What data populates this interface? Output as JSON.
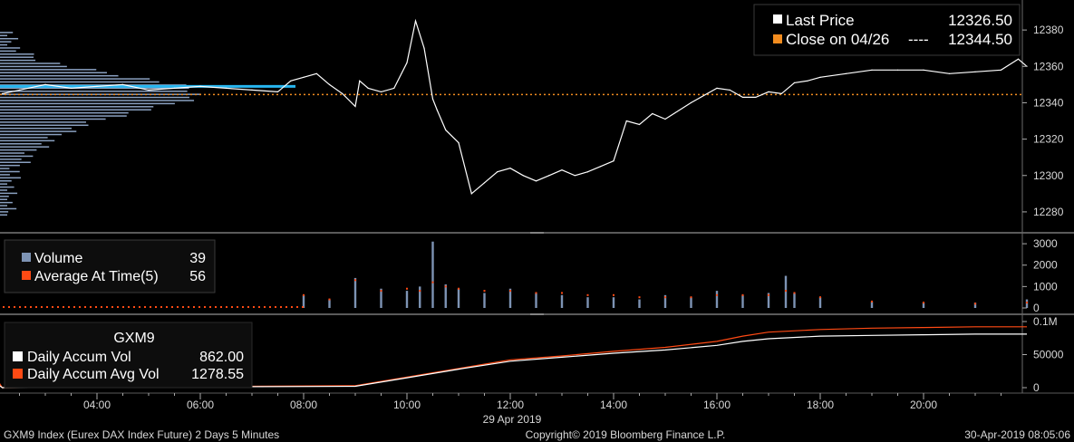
{
  "price_panel": {
    "legend": [
      {
        "label": "Last Price",
        "value": "12326.50",
        "dashes": "",
        "color": "#ffffff"
      },
      {
        "label": "Close on 04/26",
        "value": "12344.50",
        "dashes": "----",
        "color": "#f28c1f"
      }
    ]
  },
  "volume_panel": {
    "legend": [
      {
        "label": "Volume",
        "value": "39",
        "color": "#7d93b4"
      },
      {
        "label": "Average At Time(5)",
        "value": "56",
        "color": "#ff4a14"
      }
    ]
  },
  "accum_panel": {
    "ticker": "GXM9",
    "legend": [
      {
        "label": "Daily Accum Vol",
        "value": "862.00",
        "color": "#ffffff"
      },
      {
        "label": "Daily Accum Avg Vol",
        "value": "1278.55",
        "color": "#ff4a14"
      }
    ]
  },
  "x_axis": {
    "ticks": [
      "04:00",
      "06:00",
      "08:00",
      "10:00",
      "12:00",
      "14:00",
      "16:00",
      "18:00",
      "20:00"
    ],
    "date_label": "29 Apr 2019"
  },
  "footer": {
    "left": "GXM9 Index (Eurex DAX Index Future) 2 Days 5 Minutes",
    "center": "Copyright© 2019 Bloomberg Finance L.P.",
    "right": "30-Apr-2019 08:05:06"
  },
  "colors": {
    "price": "#ffffff",
    "prev_close": "#f28c1f",
    "volume_bar": "#7d93b4",
    "avg_dots": "#ff4a14",
    "profile": "#8aa0c0",
    "profile_marker": "#27b6f0"
  },
  "chart_data": [
    {
      "type": "line",
      "name": "Price",
      "series": [
        {
          "name": "Last Price",
          "x": [
            "02:10",
            "02:30",
            "03:00",
            "03:30",
            "04:00",
            "04:30",
            "05:00",
            "05:30",
            "06:00",
            "06:30",
            "07:00",
            "07:30",
            "07:45",
            "08:00",
            "08:15",
            "08:30",
            "08:45",
            "09:00",
            "09:05",
            "09:15",
            "09:30",
            "09:45",
            "10:00",
            "10:10",
            "10:20",
            "10:30",
            "10:35",
            "10:45",
            "11:00",
            "11:15",
            "11:30",
            "11:45",
            "12:00",
            "12:15",
            "12:30",
            "12:45",
            "13:00",
            "13:15",
            "13:30",
            "13:45",
            "14:00",
            "14:15",
            "14:30",
            "14:45",
            "15:00",
            "15:30",
            "16:00",
            "16:15",
            "16:30",
            "16:45",
            "17:00",
            "17:15",
            "17:30",
            "17:45",
            "18:00",
            "18:30",
            "19:00",
            "19:30",
            "20:00",
            "20:30",
            "21:00",
            "21:30",
            "21:50",
            "22:00"
          ],
          "values": [
            12345,
            12347,
            12350,
            12348,
            12349,
            12350,
            12347,
            12348,
            12349,
            12348,
            12347,
            12346,
            12352,
            12354,
            12356,
            12350,
            12345,
            12338,
            12352,
            12348,
            12346,
            12348,
            12362,
            12385,
            12370,
            12342,
            12336,
            12325,
            12318,
            12290,
            12296,
            12302,
            12304,
            12300,
            12297,
            12300,
            12303,
            12300,
            12302,
            12305,
            12308,
            12330,
            12328,
            12334,
            12331,
            12340,
            12348,
            12347,
            12343,
            12343,
            12346,
            12345,
            12351,
            12352,
            12354,
            12356,
            12358,
            12358,
            12358,
            12356,
            12357,
            12358,
            12364,
            12360
          ]
        },
        {
          "name": "Close on 04/26",
          "values": [
            12344.5
          ]
        }
      ],
      "ylim": [
        12270,
        12395
      ],
      "yticks": [
        12280,
        12300,
        12320,
        12340,
        12360,
        12380
      ]
    },
    {
      "type": "bar",
      "name": "Volume",
      "series": [
        {
          "name": "Volume",
          "x": [
            "08:00",
            "08:30",
            "09:00",
            "09:30",
            "10:00",
            "10:15",
            "10:30",
            "10:45",
            "11:00",
            "11:30",
            "12:00",
            "12:30",
            "13:00",
            "13:30",
            "14:00",
            "14:30",
            "15:00",
            "15:30",
            "16:00",
            "16:30",
            "17:00",
            "17:20",
            "17:30",
            "18:00",
            "19:00",
            "20:00",
            "21:00",
            "22:00"
          ],
          "values": [
            600,
            400,
            1400,
            900,
            800,
            1000,
            3100,
            1100,
            900,
            700,
            900,
            700,
            600,
            500,
            500,
            400,
            600,
            500,
            800,
            600,
            700,
            1500,
            700,
            500,
            300,
            250,
            250,
            400
          ]
        },
        {
          "name": "Average At Time(5)",
          "values": [
            600,
            400,
            1300,
            800,
            900,
            800,
            1200,
            1000,
            900,
            800,
            800,
            700,
            700,
            600,
            600,
            500,
            500,
            500,
            600,
            600,
            600,
            800,
            700,
            500,
            300,
            250,
            200,
            250
          ]
        }
      ],
      "ylim": [
        0,
        3300
      ],
      "yticks": [
        0,
        1000,
        2000,
        3000
      ]
    },
    {
      "type": "line",
      "name": "Daily Accum Volume",
      "series": [
        {
          "name": "Daily Accum Vol",
          "x": [
            "02:00",
            "02:10",
            "09:00",
            "10:00",
            "11:00",
            "12:00",
            "13:00",
            "14:00",
            "15:00",
            "16:00",
            "16:30",
            "17:00",
            "18:00",
            "19:00",
            "20:00",
            "21:00",
            "22:00"
          ],
          "values": [
            10000,
            0,
            2000,
            15000,
            28000,
            40000,
            46000,
            52000,
            57000,
            64000,
            70000,
            74000,
            78000,
            79000,
            80000,
            81000,
            81000
          ]
        },
        {
          "name": "Daily Accum Avg Vol",
          "values": [
            20000,
            0,
            3000,
            16000,
            29000,
            42000,
            48000,
            55000,
            61000,
            70000,
            78000,
            84000,
            88000,
            90000,
            91000,
            92000,
            92000
          ]
        }
      ],
      "ylim": [
        0,
        100000
      ],
      "yticks": [
        "0",
        "50000",
        "0.1M"
      ]
    }
  ]
}
